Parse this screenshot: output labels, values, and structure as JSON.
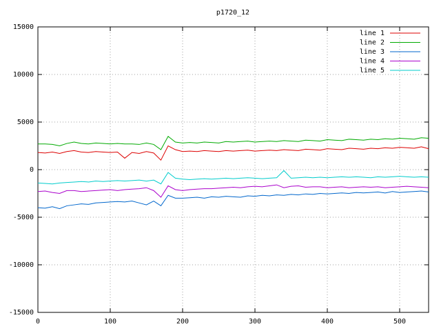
{
  "chart_data": {
    "type": "line",
    "title": "p1720_12",
    "x": [
      0,
      10,
      20,
      30,
      40,
      50,
      60,
      70,
      80,
      90,
      100,
      110,
      120,
      130,
      140,
      150,
      160,
      170,
      180,
      190,
      200,
      210,
      220,
      230,
      240,
      250,
      260,
      270,
      280,
      290,
      300,
      310,
      320,
      330,
      340,
      350,
      360,
      370,
      380,
      390,
      400,
      410,
      420,
      430,
      440,
      450,
      460,
      470,
      480,
      490,
      500,
      510,
      520,
      530,
      540
    ],
    "xlim": [
      0,
      540
    ],
    "xticks": [
      0,
      100,
      200,
      300,
      400,
      500
    ],
    "ylim": [
      -15000,
      15000
    ],
    "yticks": [
      -15000,
      -10000,
      -5000,
      0,
      5000,
      10000,
      15000
    ],
    "grid": true,
    "legend": "top-right",
    "series": [
      {
        "name": "line 1",
        "color": "#dd0000",
        "values": [
          1800,
          1750,
          1850,
          1700,
          1900,
          2000,
          1850,
          1800,
          1900,
          1850,
          1800,
          1850,
          1200,
          1800,
          1700,
          1900,
          1750,
          1000,
          2500,
          2100,
          1900,
          1950,
          1900,
          2000,
          1950,
          1900,
          2000,
          1950,
          2000,
          2050,
          1950,
          2000,
          2050,
          2000,
          2100,
          2050,
          2000,
          2150,
          2100,
          2050,
          2200,
          2150,
          2100,
          2250,
          2200,
          2150,
          2250,
          2200,
          2300,
          2250,
          2350,
          2300,
          2250,
          2400,
          2200
        ]
      },
      {
        "name": "line 2",
        "color": "#00aa00",
        "values": [
          2700,
          2700,
          2650,
          2500,
          2750,
          2900,
          2750,
          2700,
          2800,
          2750,
          2700,
          2750,
          2700,
          2700,
          2650,
          2800,
          2650,
          2100,
          3500,
          2900,
          2800,
          2850,
          2800,
          2900,
          2850,
          2800,
          2950,
          2900,
          2950,
          3000,
          2900,
          2950,
          3000,
          2950,
          3050,
          3000,
          2950,
          3100,
          3050,
          3000,
          3150,
          3100,
          3050,
          3200,
          3150,
          3100,
          3200,
          3150,
          3250,
          3200,
          3300,
          3250,
          3200,
          3350,
          3300
        ]
      },
      {
        "name": "line 3",
        "color": "#0066cc",
        "values": [
          -4000,
          -4050,
          -3900,
          -4100,
          -3800,
          -3700,
          -3600,
          -3650,
          -3500,
          -3450,
          -3400,
          -3350,
          -3400,
          -3300,
          -3500,
          -3700,
          -3300,
          -3800,
          -2700,
          -3000,
          -3000,
          -2950,
          -2900,
          -3000,
          -2850,
          -2900,
          -2800,
          -2850,
          -2900,
          -2750,
          -2800,
          -2700,
          -2750,
          -2650,
          -2700,
          -2600,
          -2650,
          -2550,
          -2600,
          -2500,
          -2550,
          -2500,
          -2450,
          -2500,
          -2400,
          -2450,
          -2400,
          -2350,
          -2450,
          -2300,
          -2400,
          -2350,
          -2300,
          -2250,
          -2350
        ]
      },
      {
        "name": "line 4",
        "color": "#aa00cc",
        "values": [
          -2300,
          -2250,
          -2400,
          -2500,
          -2200,
          -2200,
          -2300,
          -2250,
          -2200,
          -2150,
          -2100,
          -2200,
          -2100,
          -2050,
          -2000,
          -1900,
          -2200,
          -2900,
          -1700,
          -2100,
          -2200,
          -2100,
          -2050,
          -2000,
          -2000,
          -1950,
          -1900,
          -1850,
          -1900,
          -1800,
          -1750,
          -1800,
          -1700,
          -1600,
          -1900,
          -1750,
          -1700,
          -1850,
          -1800,
          -1800,
          -1900,
          -1850,
          -1800,
          -1900,
          -1850,
          -1800,
          -1850,
          -1800,
          -1900,
          -1850,
          -1800,
          -1750,
          -1800,
          -1850,
          -1900
        ]
      },
      {
        "name": "line 5",
        "color": "#00cccc",
        "values": [
          -1400,
          -1450,
          -1500,
          -1400,
          -1350,
          -1300,
          -1250,
          -1300,
          -1200,
          -1250,
          -1200,
          -1150,
          -1200,
          -1150,
          -1100,
          -1200,
          -1100,
          -1500,
          -300,
          -900,
          -1000,
          -1050,
          -1000,
          -950,
          -1000,
          -950,
          -900,
          -950,
          -900,
          -850,
          -900,
          -950,
          -900,
          -850,
          -100,
          -900,
          -850,
          -800,
          -850,
          -800,
          -850,
          -800,
          -750,
          -800,
          -750,
          -800,
          -850,
          -750,
          -800,
          -750,
          -700,
          -750,
          -800,
          -750,
          -800
        ]
      }
    ]
  }
}
